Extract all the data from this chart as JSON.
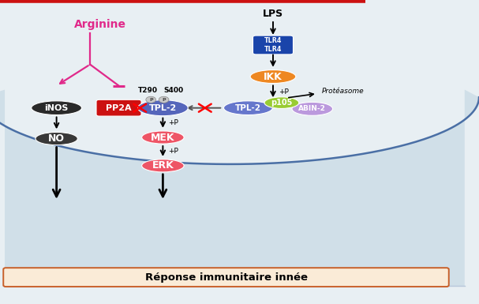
{
  "bg_color": "#e8eff3",
  "cell_color": "#d0dfe8",
  "border_color": "#4a6fa5",
  "title_text": "Réponse immunitaire innée",
  "title_box_color": "#faebd7",
  "title_box_border": "#c8602a",
  "lps_label": "LPS",
  "arginine_label": "Arginine",
  "arginine_color": "#e0298a",
  "inos_label": "iNOS",
  "inos_color": "#2a2a2a",
  "no_label": "NO",
  "no_color": "#383838",
  "pp2a_label": "PP2A",
  "pp2a_color": "#cc1111",
  "tpl2_left_label": "TPL-2",
  "tpl2_left_color": "#5566bb",
  "tpl2_right_label": "TPL-2",
  "tpl2_right_color": "#6677cc",
  "abin2_label": "ABIN-2",
  "abin2_color": "#bb99dd",
  "p105_label": "p105",
  "p105_color": "#99cc33",
  "tlr4_color": "#1a44aa",
  "ikk_label": "IKK",
  "ikk_color": "#ee8822",
  "mek_label": "MEK",
  "mek_color": "#ee5566",
  "erk_label": "ERK",
  "erk_color": "#ee5566",
  "t290_label": "T290",
  "s400_label": "S400",
  "proteasome_label": "Protéasome",
  "plus_p": "+P",
  "red_top_border": "#cc1111"
}
